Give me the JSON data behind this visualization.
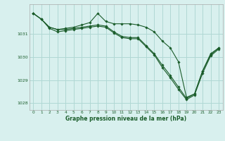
{
  "background_color": "#d8f0ee",
  "grid_color": "#b0d8d4",
  "line_color": "#1a5c2a",
  "text_color": "#1a5c2a",
  "xlabel": "Graphe pression niveau de la mer (hPa)",
  "ylim": [
    1027.7,
    1032.3
  ],
  "xlim": [
    -0.5,
    23.5
  ],
  "yticks": [
    1028,
    1029,
    1030,
    1031
  ],
  "ytick_labels": [
    "1028",
    "1029",
    "1030",
    "1031"
  ],
  "xticks": [
    0,
    1,
    2,
    3,
    4,
    5,
    6,
    7,
    8,
    9,
    10,
    11,
    12,
    13,
    14,
    15,
    16,
    17,
    18,
    19,
    20,
    21,
    22,
    23
  ],
  "series": [
    [
      1031.9,
      1031.65,
      1031.3,
      1031.2,
      1031.25,
      1031.3,
      1031.4,
      1031.5,
      1031.9,
      1031.55,
      1031.45,
      1031.45,
      1031.45,
      1031.4,
      1031.3,
      1031.1,
      1030.7,
      1030.4,
      1029.8,
      1028.25,
      1028.4,
      1029.4,
      1030.1,
      1030.4
    ],
    [
      1031.9,
      1031.65,
      1031.3,
      1031.2,
      1031.2,
      1031.25,
      1031.3,
      1031.35,
      1031.4,
      1031.35,
      1031.1,
      1030.9,
      1030.85,
      1030.85,
      1030.5,
      1030.15,
      1029.65,
      1029.2,
      1028.7,
      1028.2,
      1028.4,
      1029.4,
      1030.15,
      1030.4
    ],
    [
      1031.9,
      1031.65,
      1031.25,
      1031.1,
      1031.15,
      1031.2,
      1031.25,
      1031.3,
      1031.35,
      1031.3,
      1031.05,
      1030.85,
      1030.8,
      1030.8,
      1030.45,
      1030.1,
      1029.55,
      1029.1,
      1028.6,
      1028.15,
      1028.35,
      1029.3,
      1030.05,
      1030.35
    ]
  ]
}
